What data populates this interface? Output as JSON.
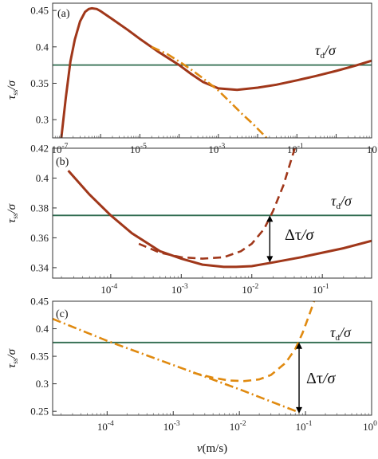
{
  "chart_data": [
    {
      "type": "line",
      "panel_label": "(a)",
      "xscale": "log",
      "xlim": [
        6e-08,
        8
      ],
      "ylim": [
        0.275,
        0.46
      ],
      "x_ticks": [
        {
          "sup": "-7"
        },
        {
          "sup": "-5"
        },
        {
          "sup": "-3"
        },
        {
          "sup": "-1"
        },
        {
          "sup": "1"
        }
      ],
      "y_ticks": [
        "0.3",
        "0.35",
        "0.4",
        "0.45"
      ],
      "y_tick_values": [
        0.3,
        0.35,
        0.4,
        0.45
      ],
      "ylabel": {
        "main": "τ",
        "sub": "ss",
        "rest": "/σ"
      },
      "annotations": [
        {
          "main": "τ",
          "sub": "d",
          "rest": "/σ"
        }
      ],
      "hline": 0.375,
      "series": [
        {
          "style": "solid",
          "color": "#a0371a",
          "x": [
            1e-07,
            1.3e-07,
            1.7e-07,
            2.2e-07,
            3e-07,
            4e-07,
            5e-07,
            6e-07,
            8e-07,
            1e-06,
            2e-06,
            5e-06,
            1e-05,
            3e-05,
            0.0001,
            0.0002,
            0.0004,
            0.001,
            0.003,
            0.01,
            0.03,
            0.1,
            0.3,
            1,
            3,
            8
          ],
          "y": [
            0.275,
            0.33,
            0.38,
            0.41,
            0.435,
            0.448,
            0.452,
            0.453,
            0.452,
            0.449,
            0.438,
            0.423,
            0.411,
            0.393,
            0.375,
            0.363,
            0.352,
            0.343,
            0.341,
            0.344,
            0.348,
            0.354,
            0.36,
            0.367,
            0.374,
            0.381
          ]
        },
        {
          "style": "dashdot",
          "color": "#e08a10",
          "x": [
            2e-05,
            5e-05,
            0.0001,
            0.0002,
            0.0004,
            0.001,
            0.002,
            0.004,
            0.008,
            0.015,
            0.025
          ],
          "y": [
            0.4,
            0.39,
            0.38,
            0.369,
            0.357,
            0.34,
            0.324,
            0.308,
            0.293,
            0.278,
            0.265
          ]
        }
      ]
    },
    {
      "type": "line",
      "panel_label": "(b)",
      "xscale": "log",
      "xlim": [
        1.5e-05,
        0.5
      ],
      "ylim": [
        0.333,
        0.42
      ],
      "x_ticks": [
        {
          "sup": "-4"
        },
        {
          "sup": "-3"
        },
        {
          "sup": "-2"
        },
        {
          "sup": "-1"
        }
      ],
      "y_ticks": [
        "0.34",
        "0.36",
        "0.38",
        "0.4",
        "0.42"
      ],
      "y_tick_values": [
        0.34,
        0.36,
        0.38,
        0.4,
        0.42
      ],
      "ylabel": {
        "main": "τ",
        "sub": "ss",
        "rest": "/σ"
      },
      "annotations": [
        {
          "main": "τ",
          "sub": "d",
          "rest": "/σ"
        },
        {
          "main": "Δτ",
          "sub": "",
          "rest": "/σ"
        }
      ],
      "hline": 0.375,
      "arrow": {
        "x": 0.018,
        "y1": 0.3435,
        "y2": 0.375
      },
      "series": [
        {
          "style": "solid",
          "color": "#a0371a",
          "x": [
            2.5e-05,
            5e-05,
            0.0001,
            0.0002,
            0.0005,
            0.001,
            0.002,
            0.004,
            0.006,
            0.01,
            0.02,
            0.05,
            0.1,
            0.2,
            0.5
          ],
          "y": [
            0.405,
            0.389,
            0.375,
            0.363,
            0.351,
            0.346,
            0.342,
            0.3405,
            0.3405,
            0.341,
            0.3435,
            0.347,
            0.35,
            0.353,
            0.358
          ]
        },
        {
          "style": "dashed",
          "color": "#a0371a",
          "x": [
            0.00025,
            0.0005,
            0.001,
            0.002,
            0.004,
            0.007,
            0.01,
            0.015,
            0.02,
            0.028,
            0.035,
            0.042
          ],
          "y": [
            0.356,
            0.35,
            0.347,
            0.346,
            0.347,
            0.351,
            0.356,
            0.366,
            0.378,
            0.395,
            0.41,
            0.422
          ]
        }
      ]
    },
    {
      "type": "line",
      "panel_label": "(c)",
      "xscale": "log",
      "xlim": [
        1.5e-05,
        1
      ],
      "ylim": [
        0.243,
        0.45
      ],
      "x_ticks": [
        {
          "sup": "-4"
        },
        {
          "sup": "-3"
        },
        {
          "sup": "-2"
        },
        {
          "sup": "-1"
        },
        {
          "sup": "0"
        }
      ],
      "y_ticks": [
        "0.25",
        "0.3",
        "0.35",
        "0.4",
        "0.45"
      ],
      "y_tick_values": [
        0.25,
        0.3,
        0.35,
        0.4,
        0.45
      ],
      "ylabel": {
        "main": "τ",
        "sub": "ss",
        "rest": "/σ"
      },
      "xlabel": {
        "main": "v",
        "rest": "(m/s)"
      },
      "annotations": [
        {
          "main": "τ",
          "sub": "d",
          "rest": "/σ"
        },
        {
          "main": "Δτ",
          "sub": "",
          "rest": "/σ"
        }
      ],
      "hline": 0.375,
      "arrow": {
        "x": 0.08,
        "y1": 0.246,
        "y2": 0.375
      },
      "series": [
        {
          "style": "dashdot",
          "color": "#e08a10",
          "x": [
            1.5e-05,
            0.0001,
            0.001,
            0.01,
            0.08
          ],
          "y": [
            0.418,
            0.378,
            0.334,
            0.29,
            0.248
          ]
        },
        {
          "style": "dashed",
          "color": "#e08a10",
          "x": [
            0.002,
            0.004,
            0.007,
            0.012,
            0.02,
            0.03,
            0.05,
            0.07,
            0.09,
            0.11,
            0.135
          ],
          "y": [
            0.32,
            0.311,
            0.306,
            0.305,
            0.308,
            0.316,
            0.338,
            0.363,
            0.392,
            0.42,
            0.45
          ]
        }
      ]
    }
  ]
}
